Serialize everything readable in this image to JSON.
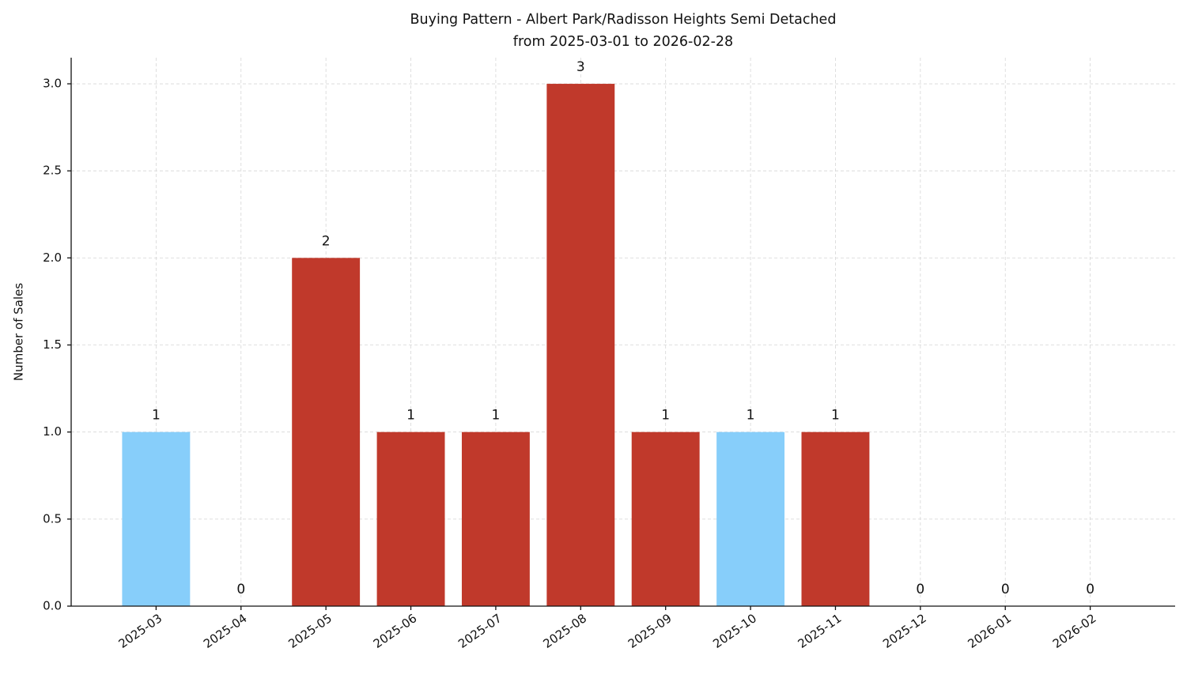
{
  "chart_data": {
    "type": "bar",
    "title": "Buying Pattern - Albert Park/Radisson Heights Semi Detached",
    "subtitle": "from 2025-03-01 to 2026-02-28",
    "y_label": "Number of Sales",
    "categories": [
      "2025-03",
      "2025-04",
      "2025-05",
      "2025-06",
      "2025-07",
      "2025-08",
      "2025-09",
      "2025-10",
      "2025-11",
      "2025-12",
      "2026-01",
      "2026-02"
    ],
    "values": [
      1,
      0,
      2,
      1,
      1,
      3,
      1,
      1,
      1,
      0,
      0,
      0
    ],
    "colors": [
      "#87cefa",
      "#c0392b",
      "#c0392b",
      "#c0392b",
      "#c0392b",
      "#c0392b",
      "#c0392b",
      "#87cefa",
      "#c0392b",
      "#c0392b",
      "#c0392b",
      "#c0392b"
    ],
    "ylim": [
      0,
      3.15
    ],
    "yticks": [
      {
        "value": 0,
        "label": "0.0"
      },
      0.5,
      {
        "value": 1,
        "label": "1.0"
      },
      1.5,
      {
        "value": 2,
        "label": "2.0"
      },
      2.5,
      {
        "value": 3,
        "label": "3.0"
      }
    ],
    "grid": true
  }
}
